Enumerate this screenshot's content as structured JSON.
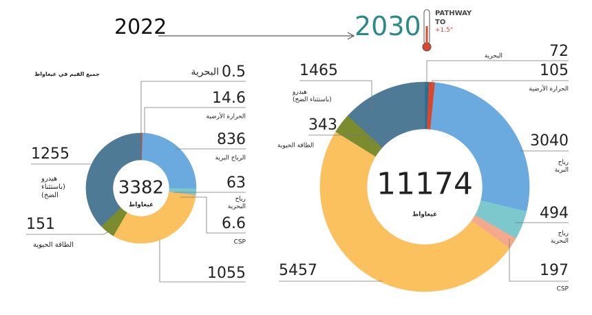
{
  "note": "جميع القيم في غيغاواط",
  "logo": [
    "PATHWAY",
    "TO",
    "+1.5°"
  ],
  "chart_data": [
    {
      "type": "donut",
      "title": "2022",
      "total": 3382,
      "unit": "غيغاواط",
      "categories": [
        "البحرية",
        "الحرارة الأرضية",
        "الرياح البرية",
        "رياح\nالبحرية",
        "CSP",
        null,
        "الطاقة الحيوية",
        "هيدرو\n(باستثناء\nالضخ)"
      ],
      "values": [
        0.5,
        14.6,
        836,
        63,
        6.6,
        1055,
        151,
        1255
      ],
      "colors": [
        "#2a6f8f",
        "#d9472f",
        "#6aaade",
        "#7dc8cc",
        "#f4a98c",
        "#fbc15e",
        "#7a8c2e",
        "#4f7a96"
      ]
    },
    {
      "type": "donut",
      "title": "2030",
      "total": 11174,
      "unit": "غيغاواط",
      "categories": [
        "البحرية",
        "الحرارة الأرضية",
        "رياح\nالبرية",
        "رياح\nالبحرية",
        "CSP",
        null,
        "الطاقة الحيوية",
        "هيدرو\n(باستثناء الضخ)"
      ],
      "values": [
        72,
        105,
        3040,
        494,
        197,
        5457,
        343,
        1465
      ],
      "colors": [
        "#2a6f8f",
        "#d9472f",
        "#6aaade",
        "#7dc8cc",
        "#f4a98c",
        "#fbc15e",
        "#7a8c2e",
        "#4f7a96"
      ]
    }
  ]
}
